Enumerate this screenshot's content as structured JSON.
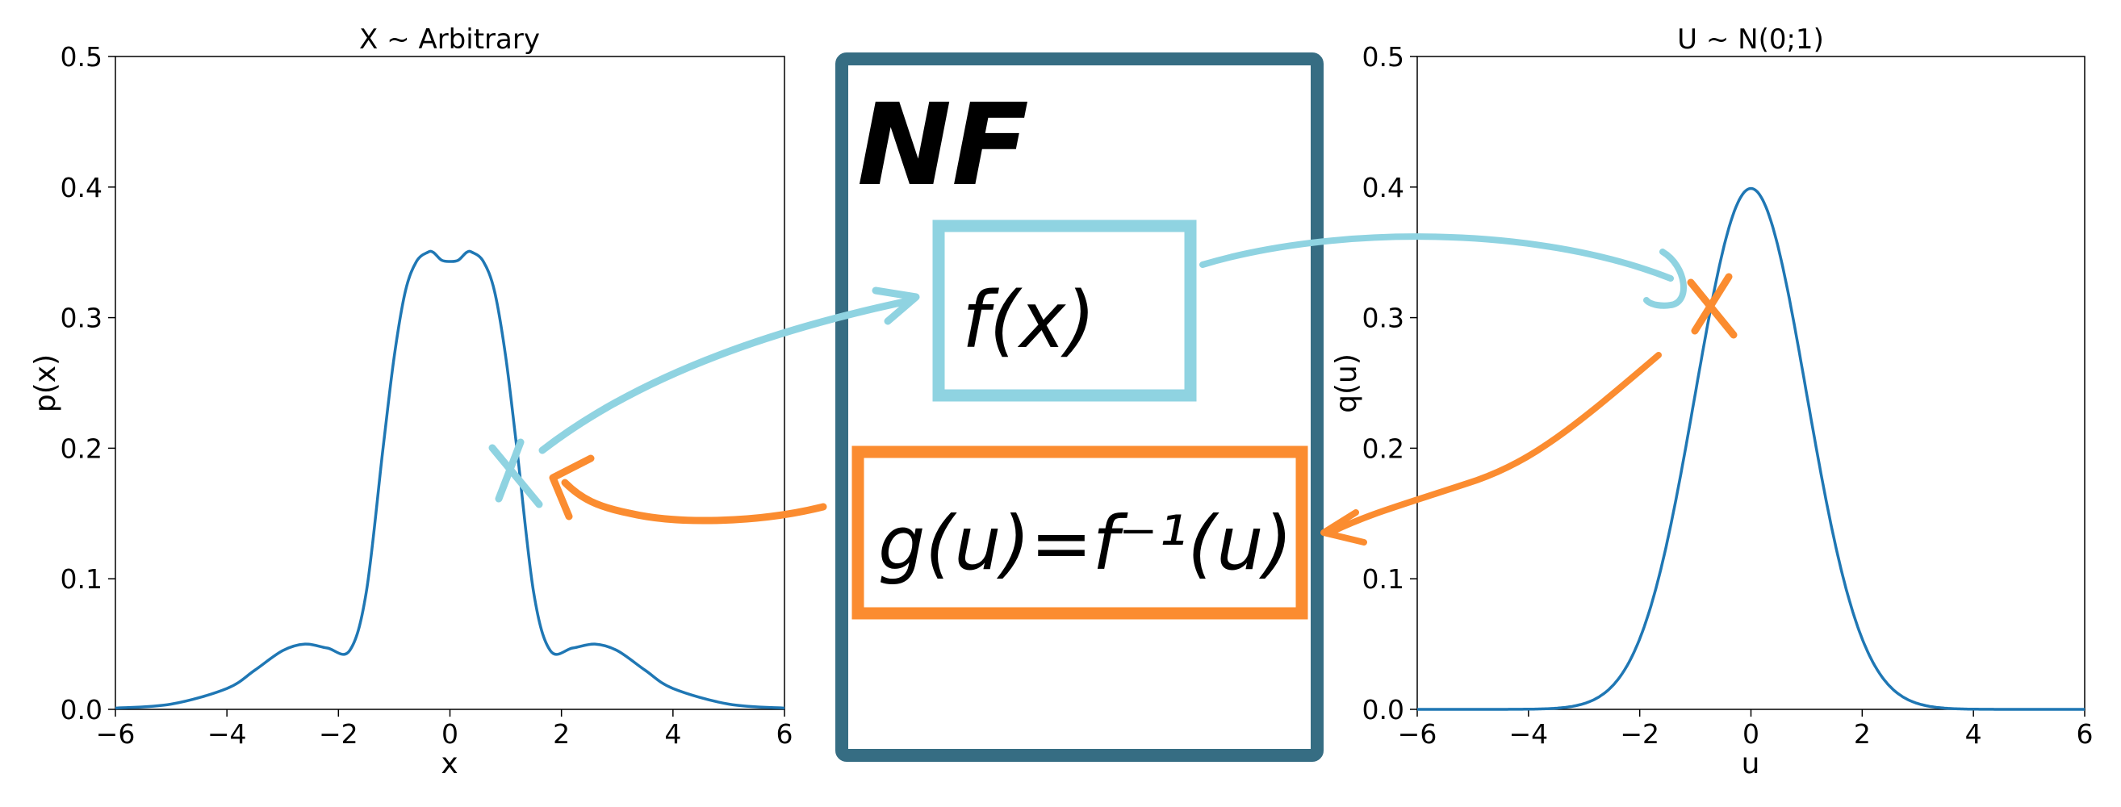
{
  "colors": {
    "curve": "#1f77b4",
    "nf_box": "#366d83",
    "forward": "#8fd3e1",
    "inverse": "#fb8c30"
  },
  "chart_data": [
    {
      "type": "line",
      "title": "X ~ Arbitrary",
      "xlabel": "x",
      "ylabel": "p(x)",
      "xlim": [
        -6,
        6
      ],
      "ylim": [
        0,
        0.5
      ],
      "xticks": [
        "−6",
        "−4",
        "−2",
        "0",
        "2",
        "4",
        "6"
      ],
      "yticks": [
        "0.0",
        "0.1",
        "0.2",
        "0.3",
        "0.4",
        "0.5"
      ],
      "grid": false,
      "series": [
        {
          "x": [
            -6,
            -5,
            -4,
            -3.5,
            -3,
            -2.6,
            -2.2,
            -1.8,
            -1.5,
            -1.2,
            -1,
            -0.8,
            -0.6,
            -0.4,
            -0.3,
            -0.15,
            0,
            0.15,
            0.3,
            0.4,
            0.6,
            0.8,
            1,
            1.2,
            1.5,
            1.8,
            2.2,
            2.6,
            3,
            3.5,
            4,
            5,
            6
          ],
          "y": [
            0.001,
            0.004,
            0.016,
            0.03,
            0.045,
            0.05,
            0.047,
            0.045,
            0.09,
            0.2,
            0.27,
            0.32,
            0.343,
            0.35,
            0.35,
            0.344,
            0.343,
            0.344,
            0.35,
            0.35,
            0.343,
            0.32,
            0.27,
            0.2,
            0.09,
            0.045,
            0.047,
            0.05,
            0.045,
            0.03,
            0.016,
            0.004,
            0.001
          ]
        }
      ]
    },
    {
      "type": "line",
      "title": "U ~ N(0;1)",
      "xlabel": "u",
      "ylabel": "q(u)",
      "xlim": [
        -6,
        6
      ],
      "ylim": [
        0,
        0.5
      ],
      "xticks": [
        "−6",
        "−4",
        "−2",
        "0",
        "2",
        "4",
        "6"
      ],
      "yticks": [
        "0.0",
        "0.1",
        "0.2",
        "0.3",
        "0.4",
        "0.5"
      ],
      "grid": false,
      "series": [
        {
          "function": "standard normal density",
          "mean": 0,
          "std": 1
        }
      ]
    }
  ],
  "diagram": {
    "nf_label": "NF",
    "forward_label": "f(x)",
    "inverse_label": "g(u)=f⁻¹(u)"
  }
}
